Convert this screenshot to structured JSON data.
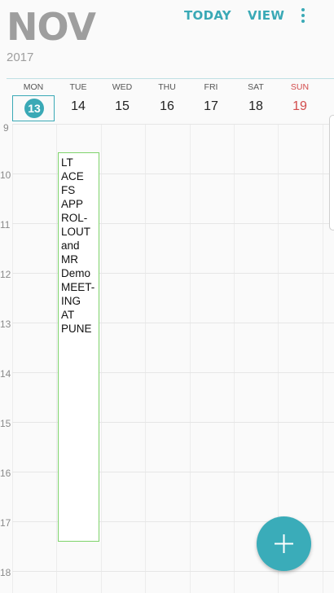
{
  "header": {
    "month": "NOV",
    "year": "2017",
    "today_label": "TODAY",
    "view_label": "VIEW",
    "menu_icon": "more-vert-icon"
  },
  "week": {
    "days": [
      {
        "name": "MON",
        "num": "13"
      },
      {
        "name": "TUE",
        "num": "14"
      },
      {
        "name": "WED",
        "num": "15"
      },
      {
        "name": "THU",
        "num": "16"
      },
      {
        "name": "FRI",
        "num": "17"
      },
      {
        "name": "SAT",
        "num": "18"
      },
      {
        "name": "SUN",
        "num": "19"
      }
    ],
    "today_index": 0
  },
  "hours": [
    "9",
    "10",
    "11",
    "12",
    "13",
    "14",
    "15",
    "16",
    "17",
    "18"
  ],
  "event": {
    "title_lines": [
      "LT",
      "ACE",
      "FS",
      "APP",
      "ROL-",
      "LOUT",
      "and",
      "MR",
      "Demo",
      "MEET-",
      "ING AT",
      "PUNE"
    ],
    "border_color": "#7ed36b"
  },
  "colors": {
    "accent": "#3aa9b6",
    "sunday": "#d24b4b"
  },
  "fab": {
    "icon": "plus-icon"
  }
}
